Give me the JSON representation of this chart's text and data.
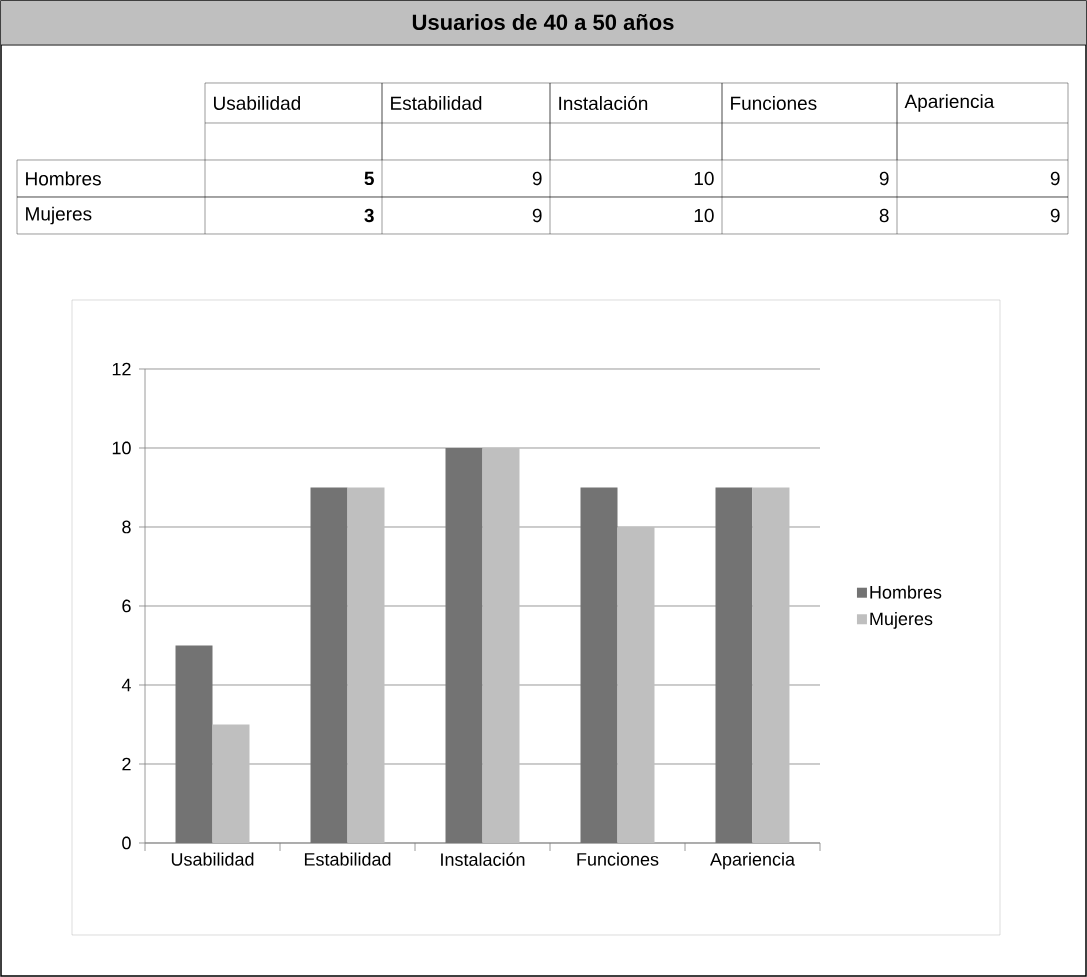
{
  "chart_data": [
    {
      "type": "other",
      "title": "Usuarios de 40 a 50 años",
      "categories": [
        "Usabilidad",
        "Estabilidad",
        "Instalación",
        "Funciones",
        "Apariencia"
      ],
      "y_categories": [
        "Hombres",
        "Mujeres"
      ],
      "cell_labels": [
        [
          "5",
          "9",
          "10",
          "9",
          "9"
        ],
        [
          "3",
          "9",
          "10",
          "8",
          "9"
        ]
      ]
    },
    {
      "type": "bar",
      "categories": [
        "Usabilidad",
        "Estabilidad",
        "Instalación",
        "Funciones",
        "Apariencia"
      ],
      "series": [
        {
          "name": "Hombres",
          "color": "#737373",
          "values": [
            5,
            9,
            10,
            9,
            9
          ]
        },
        {
          "name": "Mujeres",
          "color": "#bfbfbf",
          "values": [
            3,
            9,
            10,
            8,
            9
          ]
        }
      ],
      "ylim": [
        0,
        12
      ],
      "yticks": [
        0,
        2,
        4,
        6,
        8,
        10,
        12
      ],
      "grid": "y",
      "legend": "right"
    }
  ]
}
